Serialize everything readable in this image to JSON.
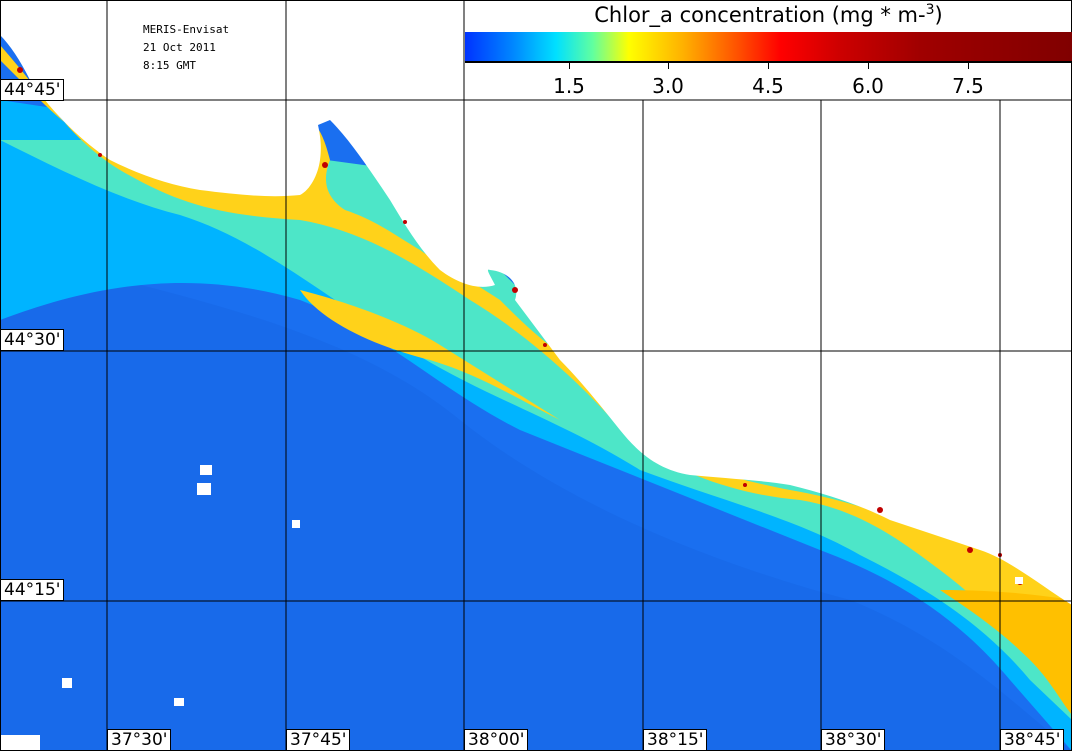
{
  "info": {
    "sensor": "MERIS-Envisat",
    "date": "21 Oct 2011",
    "time": "8:15 GMT"
  },
  "legend": {
    "title_main": "Chlor_a concentration (mg * m-",
    "title_sup": "3",
    "title_end": ")",
    "ticks": [
      "1.5",
      "3.0",
      "4.5",
      "6.0",
      "7.5"
    ]
  },
  "lat_labels": [
    "44°45'",
    "44°30'",
    "44°15'"
  ],
  "lon_labels": [
    "37°30'",
    "37°45'",
    "38°00'",
    "38°15'",
    "38°30'",
    "38°45'"
  ],
  "colors": {
    "open_water": "#1a6ff0",
    "low": "#00b4ff",
    "mid": "#4de6c8",
    "high": "#ffd21a",
    "coast_peak": "#c00000",
    "land": "#ffffff"
  }
}
